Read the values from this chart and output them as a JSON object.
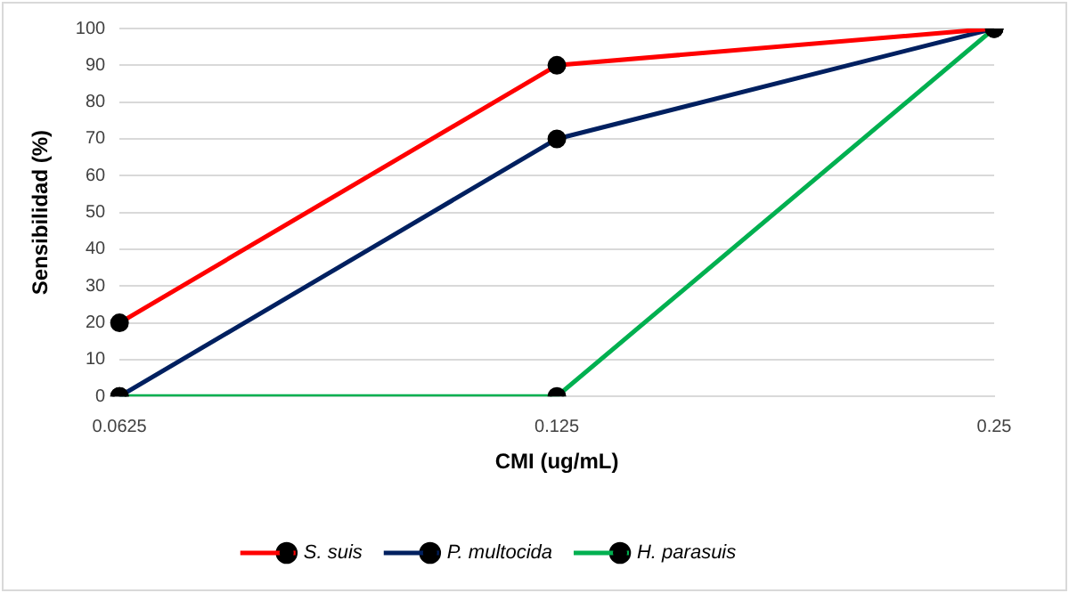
{
  "chart_data": {
    "type": "line",
    "xlabel": "CMI (ug/mL)",
    "ylabel": "Sensibilidad (%)",
    "categories": [
      "0.0625",
      "0.125",
      "0.25"
    ],
    "series": [
      {
        "name": "S. suis",
        "color": "#ff0000",
        "values": [
          20,
          90,
          100
        ]
      },
      {
        "name": "P. multocida",
        "color": "#002060",
        "values": [
          0,
          70,
          100
        ]
      },
      {
        "name": "H. parasuis",
        "color": "#00b050",
        "values": [
          0,
          0,
          100
        ]
      }
    ],
    "ylim": [
      0,
      100
    ],
    "yticks": [
      0,
      10,
      20,
      30,
      40,
      50,
      60,
      70,
      80,
      90,
      100
    ],
    "grid": "y",
    "legend": "bottom",
    "marker": "circle"
  }
}
